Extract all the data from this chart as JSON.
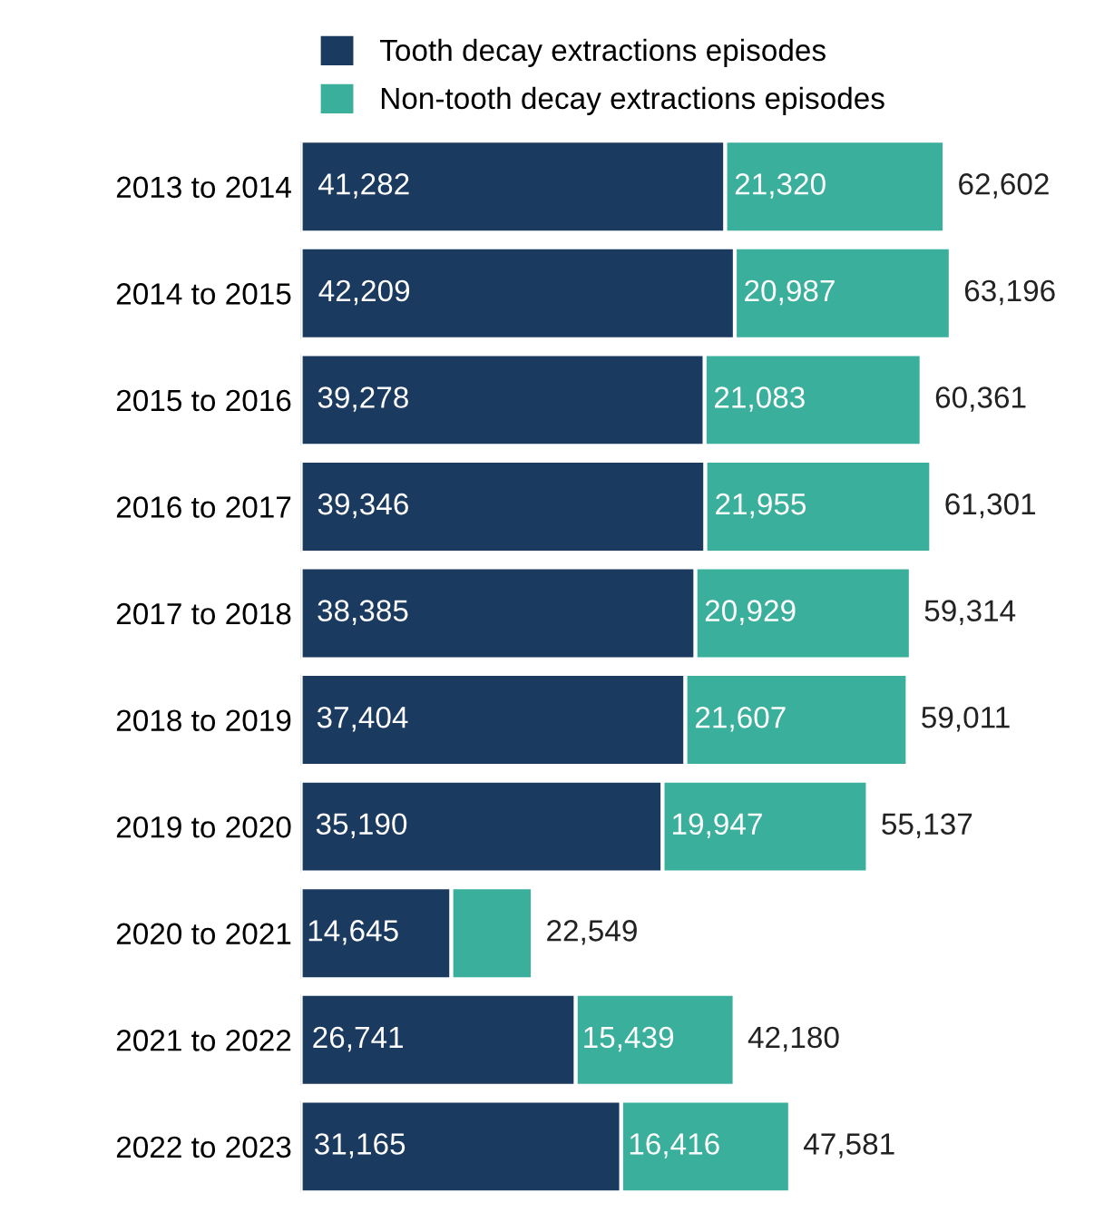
{
  "chart_data": {
    "type": "bar",
    "orientation": "horizontal",
    "stacked": true,
    "legend": "top left",
    "categories": [
      "2013 to 2014",
      "2014 to 2015",
      "2015 to 2016",
      "2016 to 2017",
      "2017 to 2018",
      "2018 to 2019",
      "2019 to 2020",
      "2020 to 2021",
      "2021 to 2022",
      "2022 to 2023"
    ],
    "series": [
      {
        "name": "Tooth decay extractions episodes",
        "color": "#1b3a5f",
        "values": [
          41282,
          42209,
          39278,
          39346,
          38385,
          37404,
          35190,
          14645,
          26741,
          31165
        ],
        "value_labels": [
          "41,282",
          "42,209",
          "39,278",
          "39,346",
          "38,385",
          "37,404",
          "35,190",
          "14,645",
          "26,741",
          "31,165"
        ]
      },
      {
        "name": "Non-tooth decay extractions episodes",
        "color": "#3aaf9c",
        "values": [
          21320,
          20987,
          21083,
          21955,
          20929,
          21607,
          19947,
          7904,
          15439,
          16416
        ],
        "value_labels": [
          "21,320",
          "20,987",
          "21,083",
          "21,955",
          "20,929",
          "21,607",
          "19,947",
          null,
          "15,439",
          "16,416"
        ]
      }
    ],
    "totals": [
      "62,602",
      "63,196",
      "60,361",
      "61,301",
      "59,314",
      "59,011",
      "55,137",
      "22,549",
      "42,180",
      "47,581"
    ]
  }
}
